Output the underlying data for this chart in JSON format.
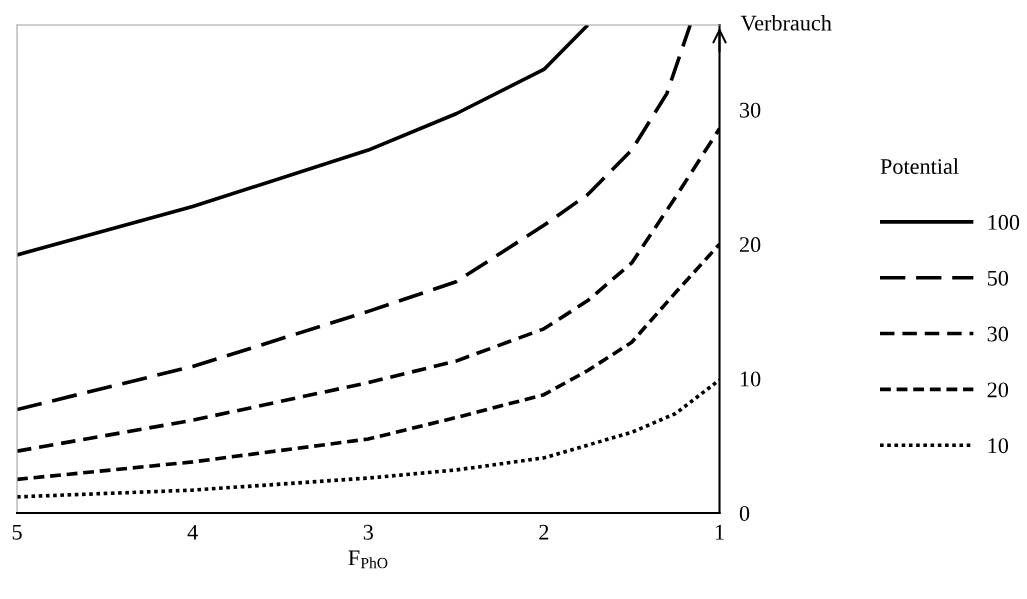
{
  "chart_data": {
    "type": "line",
    "xlabel": "F$_{PhO}$",
    "ylabel": "Verbrauch",
    "legend_title": "Potential",
    "legend": "right",
    "grid": false,
    "marker": "none",
    "xlim": [
      5,
      1
    ],
    "xticks": [
      5,
      4,
      3,
      2,
      1
    ],
    "ylim": [
      0,
      36.3
    ],
    "yticks": [
      0,
      10,
      20,
      30
    ],
    "series": [
      {
        "name": "100",
        "color": "#000000",
        "line_style": "solid",
        "x": [
          5,
          4,
          3,
          2.5,
          2,
          1.75
        ],
        "values": [
          19.2,
          22.8,
          27.0,
          29.7,
          33.0,
          36.3
        ]
      },
      {
        "name": "50",
        "color": "#000000",
        "line_style": "dashed",
        "x": [
          5,
          4,
          3,
          2.5,
          2,
          1.75,
          1.5,
          1.3,
          1.167
        ],
        "values": [
          7.7,
          10.9,
          15.0,
          17.2,
          21.4,
          23.7,
          27.0,
          31.2,
          36.3
        ]
      },
      {
        "name": "30",
        "color": "#000000",
        "line_style": "dashed",
        "x": [
          5,
          4,
          3,
          2.5,
          2,
          1.75,
          1.5,
          1.25,
          1
        ],
        "values": [
          4.6,
          6.9,
          9.7,
          11.3,
          13.7,
          15.8,
          18.6,
          23.5,
          28.6
        ]
      },
      {
        "name": "20",
        "color": "#000000",
        "line_style": "dashed",
        "x": [
          5,
          4,
          3,
          2.5,
          2,
          1.75,
          1.5,
          1.25,
          1
        ],
        "values": [
          2.5,
          3.8,
          5.5,
          7.1,
          8.8,
          10.6,
          12.7,
          16.4,
          20.0
        ]
      },
      {
        "name": "10",
        "color": "#000000",
        "line_style": "dotted",
        "x": [
          5,
          4,
          3,
          2.5,
          2,
          1.5,
          1.25,
          1
        ],
        "values": [
          1.2,
          1.7,
          2.6,
          3.2,
          4.1,
          6.0,
          7.4,
          9.9
        ]
      }
    ]
  }
}
